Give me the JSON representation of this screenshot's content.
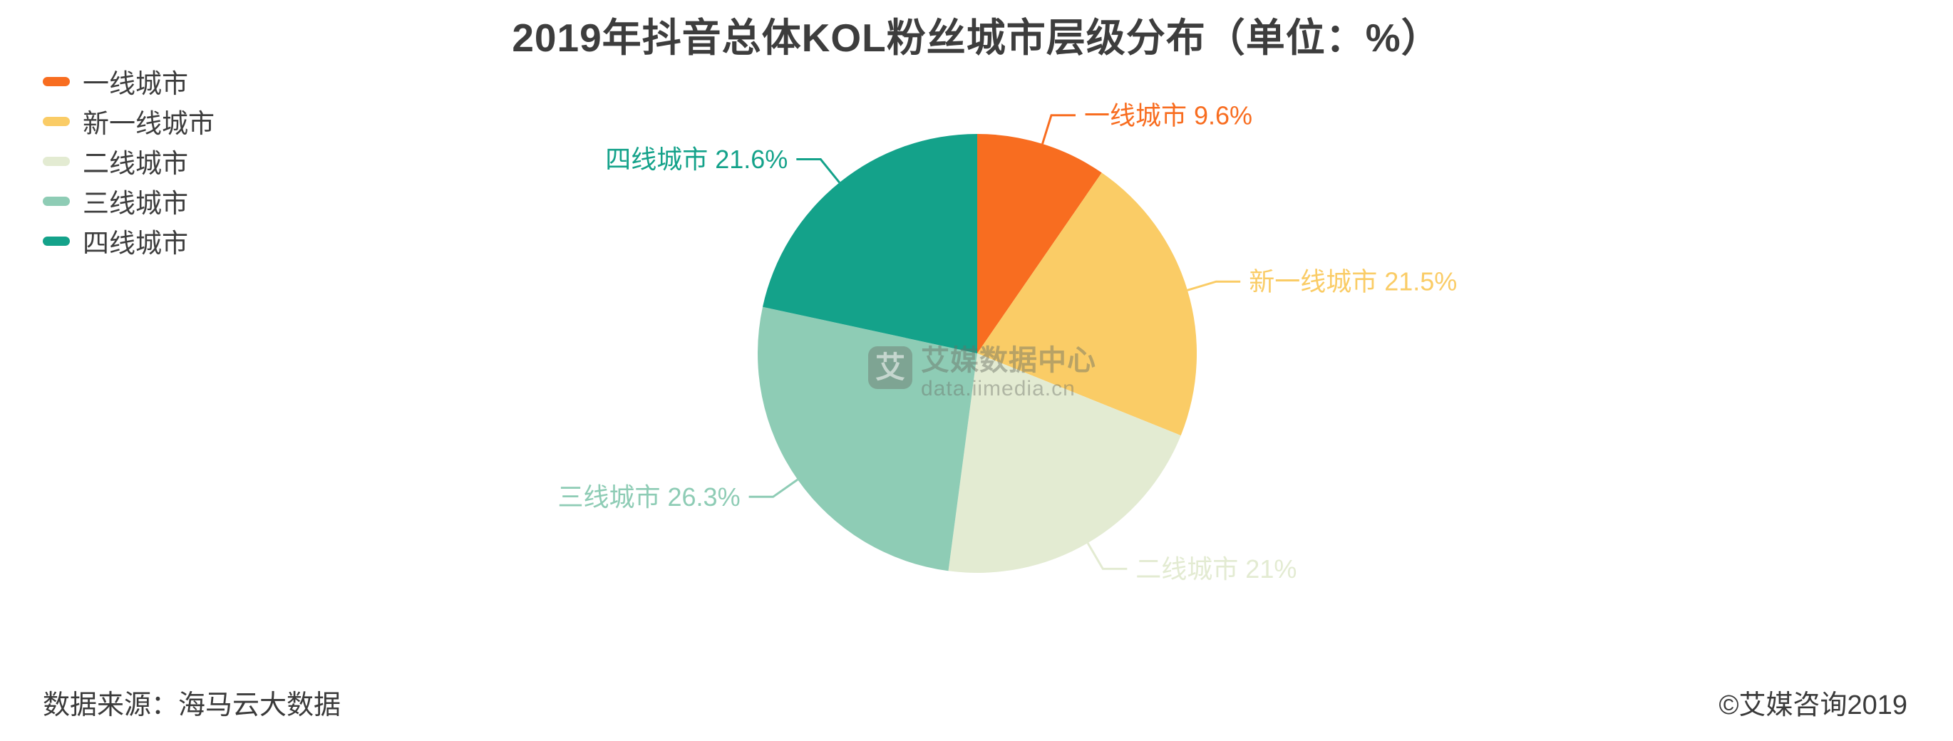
{
  "title": "2019年抖音总体KOL粉丝城市层级分布（单位：%）",
  "source_note": "数据来源：海马云大数据",
  "copyright": "©艾媒咨询2019",
  "watermark": {
    "logo_char": "艾",
    "name": "艾媒数据中心",
    "domain": "data.iimedia.cn"
  },
  "chart_data": {
    "type": "pie",
    "title": "2019年抖音总体KOL粉丝城市层级分布（单位：%）",
    "unit": "%",
    "legend_position": "top-left",
    "start_angle": "12-oclock",
    "direction": "clockwise",
    "legend": [
      "一线城市",
      "新一线城市",
      "二线城市",
      "三线城市",
      "四线城市"
    ],
    "slices": [
      {
        "label": "一线城市",
        "value": 9.6,
        "display": "9.6%",
        "color": "#F86D20"
      },
      {
        "label": "新一线城市",
        "value": 21.5,
        "display": "21.5%",
        "color": "#FACC66"
      },
      {
        "label": "二线城市",
        "value": 21,
        "display": "21%",
        "color": "#E3EBD2"
      },
      {
        "label": "三线城市",
        "value": 26.3,
        "display": "26.3%",
        "color": "#8ECCB5"
      },
      {
        "label": "四线城市",
        "value": 21.6,
        "display": "21.6%",
        "color": "#14A28A"
      }
    ]
  }
}
